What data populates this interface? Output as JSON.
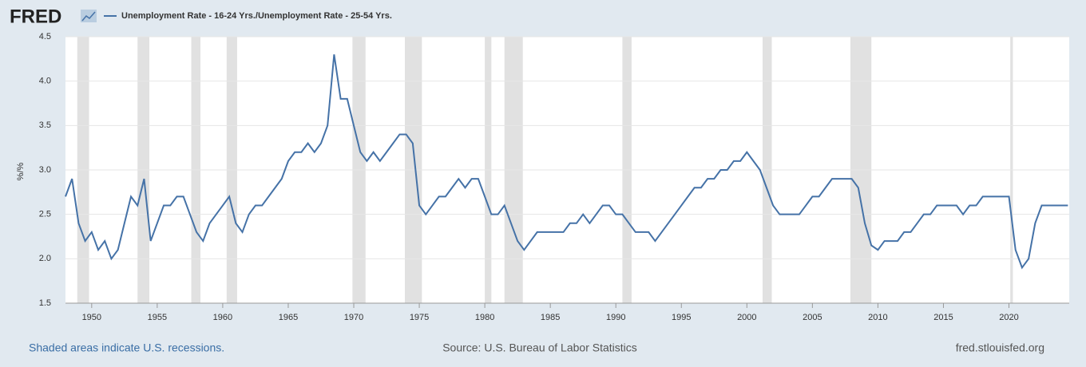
{
  "logo": "FRED",
  "chart_data": {
    "type": "line",
    "y_label": "%/%",
    "x": [
      1948.0,
      1948.5,
      1949.0,
      1949.5,
      1950.0,
      1950.5,
      1951.0,
      1951.5,
      1952.0,
      1952.5,
      1953.0,
      1953.5,
      1954.0,
      1954.5,
      1955.0,
      1955.5,
      1956.0,
      1956.5,
      1957.0,
      1957.5,
      1958.0,
      1958.5,
      1959.0,
      1959.5,
      1960.0,
      1960.5,
      1961.0,
      1961.5,
      1962.0,
      1962.5,
      1963.0,
      1963.5,
      1964.0,
      1964.5,
      1965.0,
      1965.5,
      1966.0,
      1966.5,
      1967.0,
      1967.5,
      1968.0,
      1968.5,
      1969.0,
      1969.5,
      1970.0,
      1970.5,
      1971.0,
      1971.5,
      1972.0,
      1972.5,
      1973.0,
      1973.5,
      1974.0,
      1974.5,
      1975.0,
      1975.5,
      1976.0,
      1976.5,
      1977.0,
      1977.5,
      1978.0,
      1978.5,
      1979.0,
      1979.5,
      1980.0,
      1980.5,
      1981.0,
      1981.5,
      1982.0,
      1982.5,
      1983.0,
      1983.5,
      1984.0,
      1984.5,
      1985.0,
      1985.5,
      1986.0,
      1986.5,
      1987.0,
      1987.5,
      1988.0,
      1988.5,
      1989.0,
      1989.5,
      1990.0,
      1990.5,
      1991.0,
      1991.5,
      1992.0,
      1992.5,
      1993.0,
      1993.5,
      1994.0,
      1994.5,
      1995.0,
      1995.5,
      1996.0,
      1996.5,
      1997.0,
      1997.5,
      1998.0,
      1998.5,
      1999.0,
      1999.5,
      2000.0,
      2000.5,
      2001.0,
      2001.5,
      2002.0,
      2002.5,
      2003.0,
      2003.5,
      2004.0,
      2004.5,
      2005.0,
      2005.5,
      2006.0,
      2006.5,
      2007.0,
      2007.5,
      2008.0,
      2008.5,
      2009.0,
      2009.5,
      2010.0,
      2010.5,
      2011.0,
      2011.5,
      2012.0,
      2012.5,
      2013.0,
      2013.5,
      2014.0,
      2014.5,
      2015.0,
      2015.5,
      2016.0,
      2016.5,
      2017.0,
      2017.5,
      2018.0,
      2018.5,
      2019.0,
      2019.5,
      2020.0,
      2020.5,
      2021.0,
      2021.5,
      2022.0,
      2022.5,
      2023.0,
      2023.5,
      2024.0,
      2024.5
    ],
    "series": [
      {
        "name": "Unemployment Rate - 16-24 Yrs./Unemployment Rate - 25-54 Yrs.",
        "color": "#4572a7",
        "values": [
          2.7,
          2.9,
          2.4,
          2.2,
          2.3,
          2.1,
          2.2,
          2.0,
          2.1,
          2.4,
          2.7,
          2.6,
          2.9,
          2.2,
          2.4,
          2.6,
          2.6,
          2.7,
          2.7,
          2.5,
          2.3,
          2.2,
          2.4,
          2.5,
          2.6,
          2.7,
          2.4,
          2.3,
          2.5,
          2.6,
          2.6,
          2.7,
          2.8,
          2.9,
          3.1,
          3.2,
          3.2,
          3.3,
          3.2,
          3.3,
          3.5,
          4.3,
          3.8,
          3.8,
          3.5,
          3.2,
          3.1,
          3.2,
          3.1,
          3.2,
          3.3,
          3.4,
          3.4,
          3.3,
          2.6,
          2.5,
          2.6,
          2.7,
          2.7,
          2.8,
          2.9,
          2.8,
          2.9,
          2.9,
          2.7,
          2.5,
          2.5,
          2.6,
          2.4,
          2.2,
          2.1,
          2.2,
          2.3,
          2.3,
          2.3,
          2.3,
          2.3,
          2.4,
          2.4,
          2.5,
          2.4,
          2.5,
          2.6,
          2.6,
          2.5,
          2.5,
          2.4,
          2.3,
          2.3,
          2.3,
          2.2,
          2.3,
          2.4,
          2.5,
          2.6,
          2.7,
          2.8,
          2.8,
          2.9,
          2.9,
          3.0,
          3.0,
          3.1,
          3.1,
          3.2,
          3.1,
          3.0,
          2.8,
          2.6,
          2.5,
          2.5,
          2.5,
          2.5,
          2.6,
          2.7,
          2.7,
          2.8,
          2.9,
          2.9,
          2.9,
          2.9,
          2.8,
          2.4,
          2.15,
          2.1,
          2.2,
          2.2,
          2.2,
          2.3,
          2.3,
          2.4,
          2.5,
          2.5,
          2.6,
          2.6,
          2.6,
          2.6,
          2.5,
          2.6,
          2.6,
          2.7,
          2.7,
          2.7,
          2.7,
          2.7,
          2.1,
          1.9,
          2.0,
          2.4,
          2.6,
          2.6,
          2.6,
          2.6,
          2.6
        ]
      }
    ],
    "recessions": [
      [
        1948.9,
        1949.8
      ],
      [
        1953.5,
        1954.4
      ],
      [
        1957.6,
        1958.3
      ],
      [
        1960.3,
        1961.1
      ],
      [
        1969.9,
        1970.9
      ],
      [
        1973.9,
        1975.2
      ],
      [
        1980.0,
        1980.5
      ],
      [
        1981.5,
        1982.9
      ],
      [
        1990.5,
        1991.2
      ],
      [
        2001.2,
        2001.9
      ],
      [
        2007.9,
        2009.5
      ],
      [
        2020.1,
        2020.3
      ]
    ],
    "xlim": [
      1948.0,
      2024.6
    ],
    "xticks": [
      1950,
      1955,
      1960,
      1965,
      1970,
      1975,
      1980,
      1985,
      1990,
      1995,
      2000,
      2005,
      2010,
      2015,
      2020
    ],
    "ylim": [
      1.5,
      4.5
    ],
    "yticks": [
      1.5,
      {
        "value": 2.0,
        "label": "2.0"
      },
      2.5,
      {
        "value": 3.0,
        "label": "3.0"
      },
      3.5,
      {
        "value": 4.0,
        "label": "4.0"
      },
      4.5
    ],
    "grid": true
  },
  "footer": {
    "note": "Shaded areas indicate U.S. recessions.",
    "source": "Source: U.S. Bureau of Labor Statistics",
    "site": "fred.stlouisfed.org"
  }
}
